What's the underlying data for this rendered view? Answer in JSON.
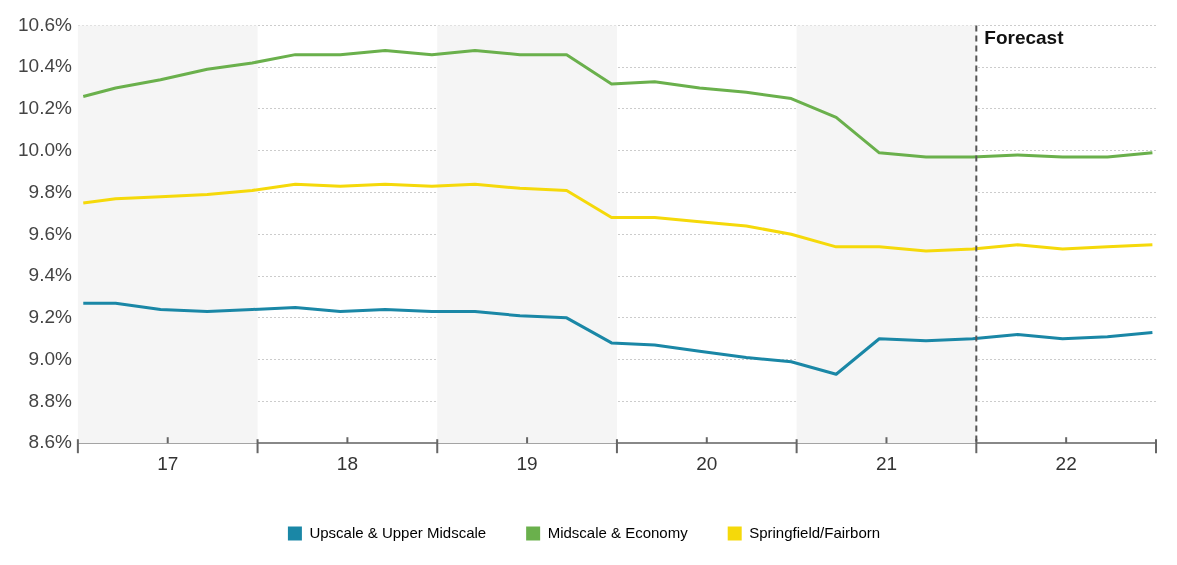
{
  "chart_data": {
    "type": "line",
    "x": [
      17.03,
      17.21,
      17.46,
      17.72,
      17.97,
      18.21,
      18.46,
      18.71,
      18.97,
      19.21,
      19.46,
      19.72,
      19.97,
      20.21,
      20.46,
      20.72,
      20.97,
      21.22,
      21.46,
      21.72,
      21.98,
      22.23,
      22.48,
      22.73,
      22.98
    ],
    "series": [
      {
        "name": "Upscale & Upper Midscale",
        "color": "#1a87a6",
        "values": [
          9.27,
          9.27,
          9.24,
          9.23,
          9.24,
          9.25,
          9.23,
          9.24,
          9.23,
          9.23,
          9.21,
          9.2,
          9.08,
          9.07,
          9.04,
          9.01,
          8.99,
          8.93,
          9.1,
          9.09,
          9.1,
          9.12,
          9.1,
          9.11,
          9.13
        ]
      },
      {
        "name": "Midscale & Economy",
        "color": "#6ab04c",
        "values": [
          10.26,
          10.3,
          10.34,
          10.39,
          10.42,
          10.46,
          10.46,
          10.48,
          10.46,
          10.48,
          10.46,
          10.46,
          10.32,
          10.33,
          10.3,
          10.28,
          10.25,
          10.16,
          9.99,
          9.97,
          9.97,
          9.98,
          9.97,
          9.97,
          9.99
        ]
      },
      {
        "name": "Springfield/Fairborn",
        "color": "#f5d90a",
        "values": [
          9.75,
          9.77,
          9.78,
          9.79,
          9.81,
          9.84,
          9.83,
          9.84,
          9.83,
          9.84,
          9.82,
          9.81,
          9.68,
          9.68,
          9.66,
          9.64,
          9.6,
          9.54,
          9.54,
          9.52,
          9.53,
          9.55,
          9.53,
          9.54,
          9.55
        ]
      }
    ],
    "xlim": [
      17,
      23
    ],
    "xticks": [
      {
        "value": 17,
        "label": null
      },
      {
        "value": 17.5,
        "label": "17"
      },
      {
        "value": 18,
        "label": null
      },
      {
        "value": 18.5,
        "label": "18"
      },
      {
        "value": 19,
        "label": null
      },
      {
        "value": 19.5,
        "label": "19"
      },
      {
        "value": 20,
        "label": null
      },
      {
        "value": 20.5,
        "label": "20"
      },
      {
        "value": 21,
        "label": null
      },
      {
        "value": 21.5,
        "label": "21"
      },
      {
        "value": 22,
        "label": null
      },
      {
        "value": 22.5,
        "label": "22"
      },
      {
        "value": 23,
        "label": null
      }
    ],
    "ylim": [
      8.6,
      10.6
    ],
    "yticks": [
      {
        "value": 8.6,
        "label": "8.6%"
      },
      {
        "value": 8.8,
        "label": "8.8%"
      },
      {
        "value": 9.0,
        "label": "9.0%"
      },
      {
        "value": 9.2,
        "label": "9.2%"
      },
      {
        "value": 9.4,
        "label": "9.4%"
      },
      {
        "value": 9.6,
        "label": "9.6%"
      },
      {
        "value": 9.8,
        "label": "9.8%"
      },
      {
        "value": 10.0,
        "label": "10.0%"
      },
      {
        "value": 10.2,
        "label": "10.2%"
      },
      {
        "value": 10.4,
        "label": "10.4%"
      },
      {
        "value": 10.6,
        "label": "10.6%"
      }
    ],
    "bands": [
      {
        "axis": "x",
        "from": 17,
        "to": 18,
        "color": "#f5f5f5"
      },
      {
        "axis": "x",
        "from": 19,
        "to": 20,
        "color": "#f5f5f5"
      },
      {
        "axis": "x",
        "from": 21,
        "to": 22,
        "color": "#f5f5f5"
      }
    ],
    "ref_lines": [
      {
        "axis": "x",
        "value": 22,
        "label": "Forecast",
        "color": "#555555",
        "line_style": "dashed"
      }
    ],
    "grid": "y",
    "legend": "bottom",
    "marker": "none",
    "line_style": "solid"
  }
}
